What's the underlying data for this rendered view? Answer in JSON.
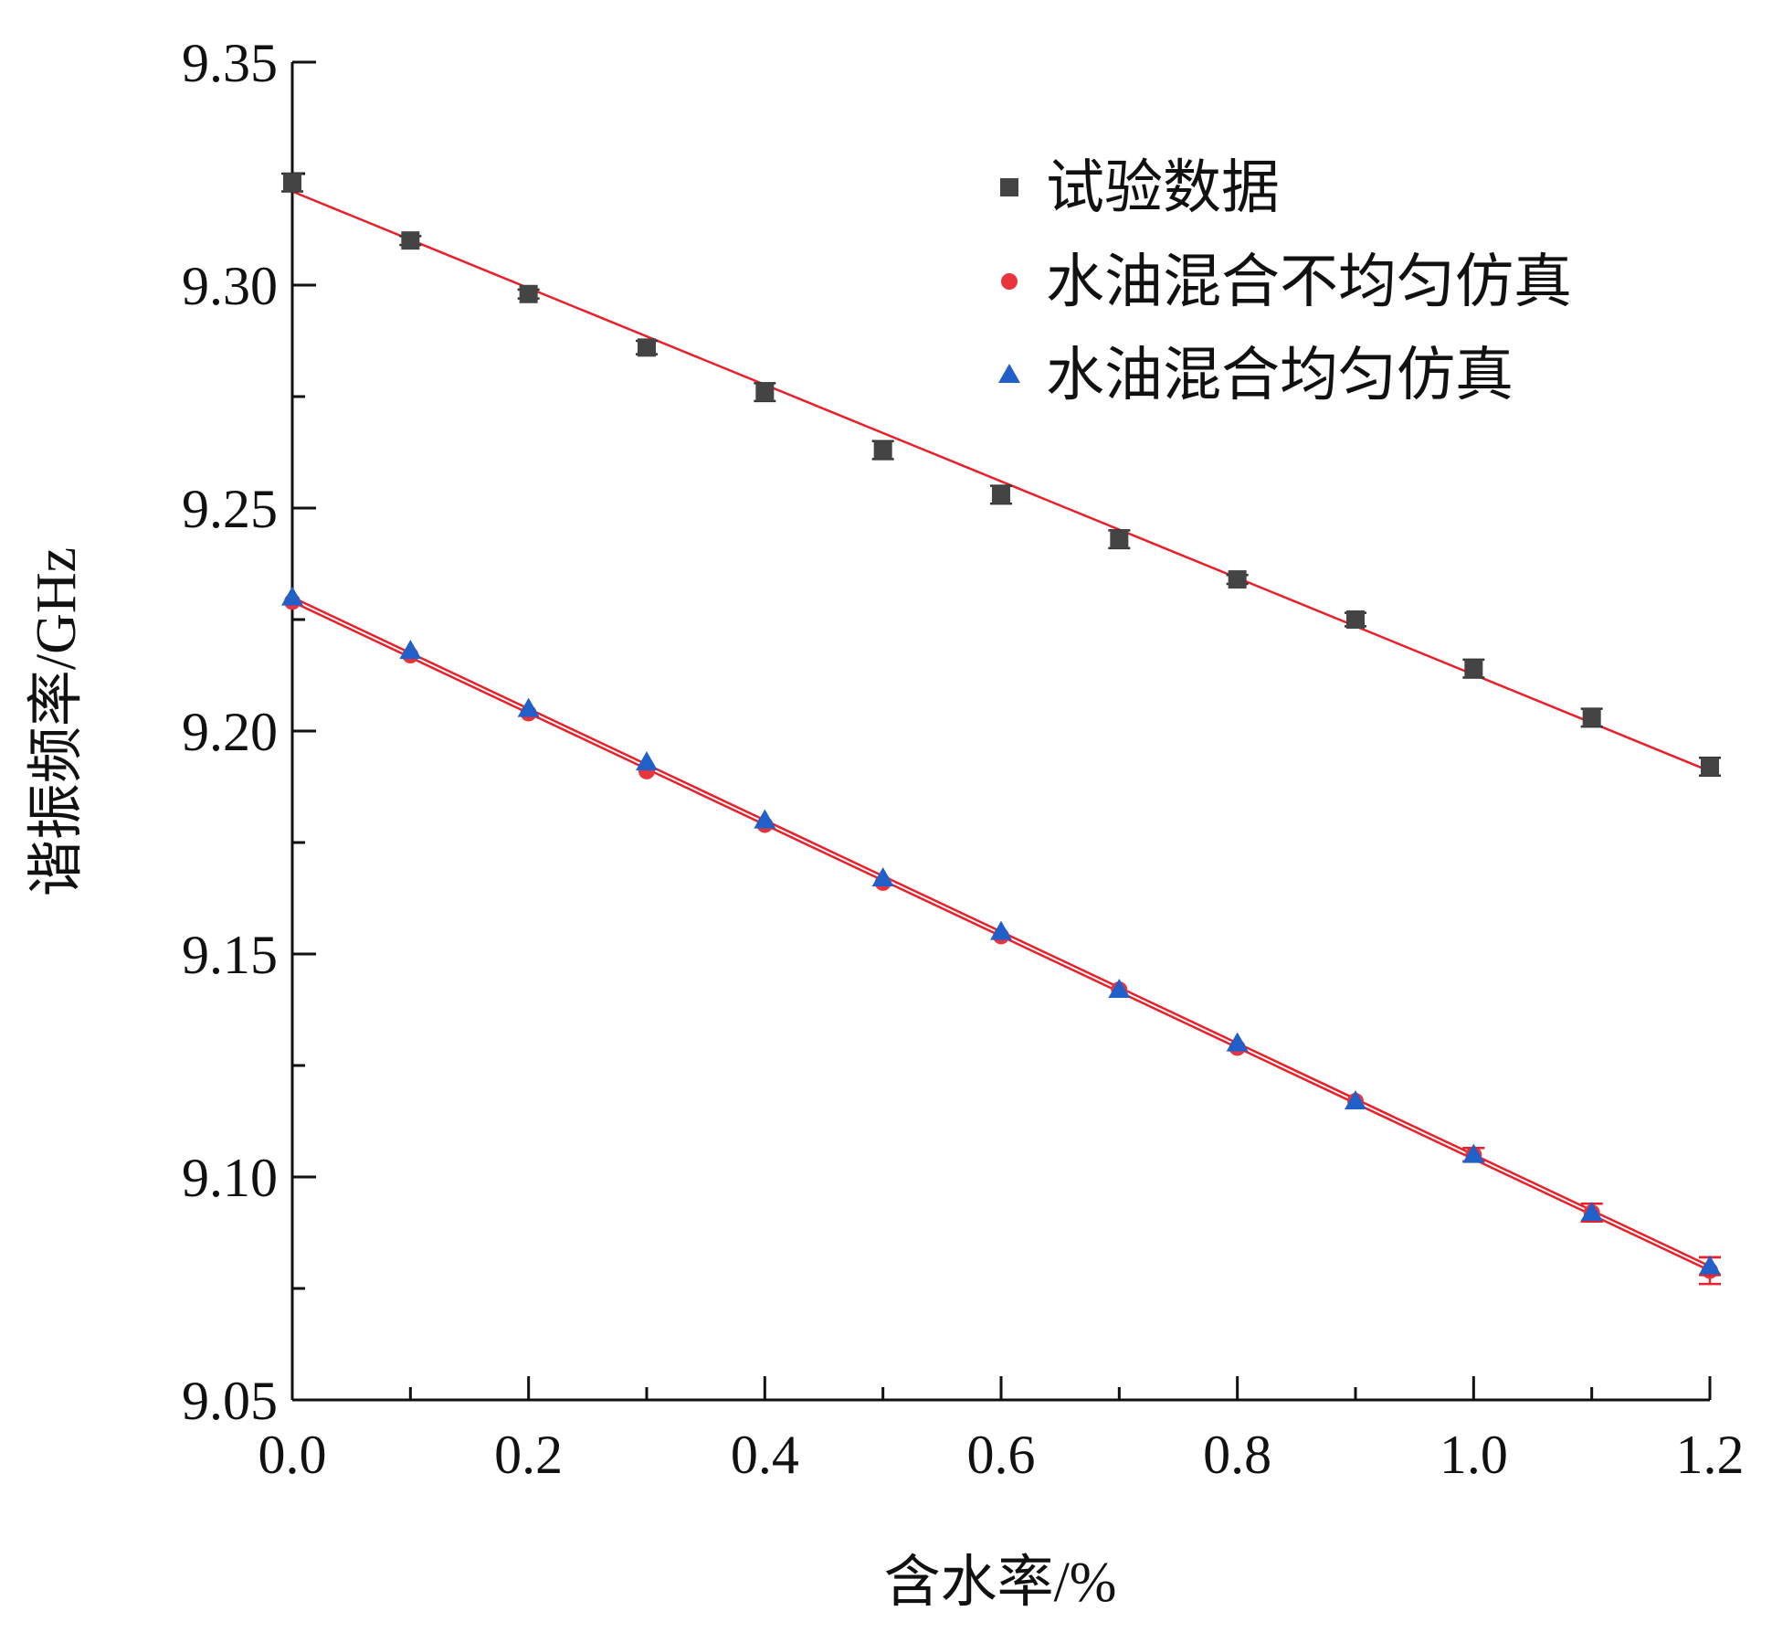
{
  "chart_data": {
    "type": "scatter",
    "xlabel": "含水率/%",
    "ylabel": "谐振频率/GHz",
    "xlim": [
      0.0,
      1.2
    ],
    "ylim": [
      9.05,
      9.35
    ],
    "xticks": [
      "0.0",
      "0.2",
      "0.4",
      "0.6",
      "0.8",
      "1.0",
      "1.2"
    ],
    "yticks": [
      "9.05",
      "9.10",
      "9.15",
      "9.20",
      "9.25",
      "9.30",
      "9.35"
    ],
    "grid": false,
    "legend_position": "top-right",
    "x": [
      0.0,
      0.1,
      0.2,
      0.3,
      0.4,
      0.5,
      0.6,
      0.7,
      0.8,
      0.9,
      1.0,
      1.1,
      1.2
    ],
    "series": [
      {
        "name": "试验数据",
        "marker": "square",
        "color": "#444444",
        "values": [
          9.323,
          9.31,
          9.298,
          9.286,
          9.276,
          9.263,
          9.253,
          9.243,
          9.234,
          9.225,
          9.214,
          9.203,
          9.192
        ],
        "errors": [
          0.002,
          0.001,
          0.001,
          0.0015,
          0.002,
          0.002,
          0.002,
          0.002,
          0.001,
          0.0015,
          0.002,
          0.002,
          0.002
        ],
        "fit": {
          "color": "#e8202a",
          "x0": 0.0,
          "y0": 9.321,
          "x1": 1.2,
          "y1": 9.191
        }
      },
      {
        "name": "水油混合不均匀仿真",
        "marker": "circle",
        "color": "#e8343c",
        "values": [
          9.229,
          9.217,
          9.204,
          9.191,
          9.179,
          9.166,
          9.154,
          9.142,
          9.129,
          9.117,
          9.105,
          9.092,
          9.079
        ],
        "errors": [
          0.0,
          0.0,
          0.0,
          0.0,
          0.0,
          0.0,
          0.0,
          0.0,
          0.0,
          0.0,
          0.0015,
          0.002,
          0.003
        ],
        "fit": {
          "color": "#e8202a",
          "x0": 0.0,
          "y0": 9.229,
          "x1": 1.2,
          "y1": 9.079
        }
      },
      {
        "name": "水油混合均匀仿真",
        "marker": "triangle",
        "color": "#2060c8",
        "values": [
          9.23,
          9.218,
          9.205,
          9.193,
          9.18,
          9.167,
          9.155,
          9.142,
          9.13,
          9.117,
          9.105,
          9.092,
          9.08
        ],
        "errors": [
          0.0,
          0.0,
          0.0,
          0.0,
          0.0,
          0.0,
          0.0,
          0.0,
          0.0,
          0.0,
          0.0015,
          0.002,
          0.002
        ],
        "fit": {
          "color": "#e8202a",
          "x0": 0.0,
          "y0": 9.23,
          "x1": 1.2,
          "y1": 9.08
        }
      }
    ]
  }
}
